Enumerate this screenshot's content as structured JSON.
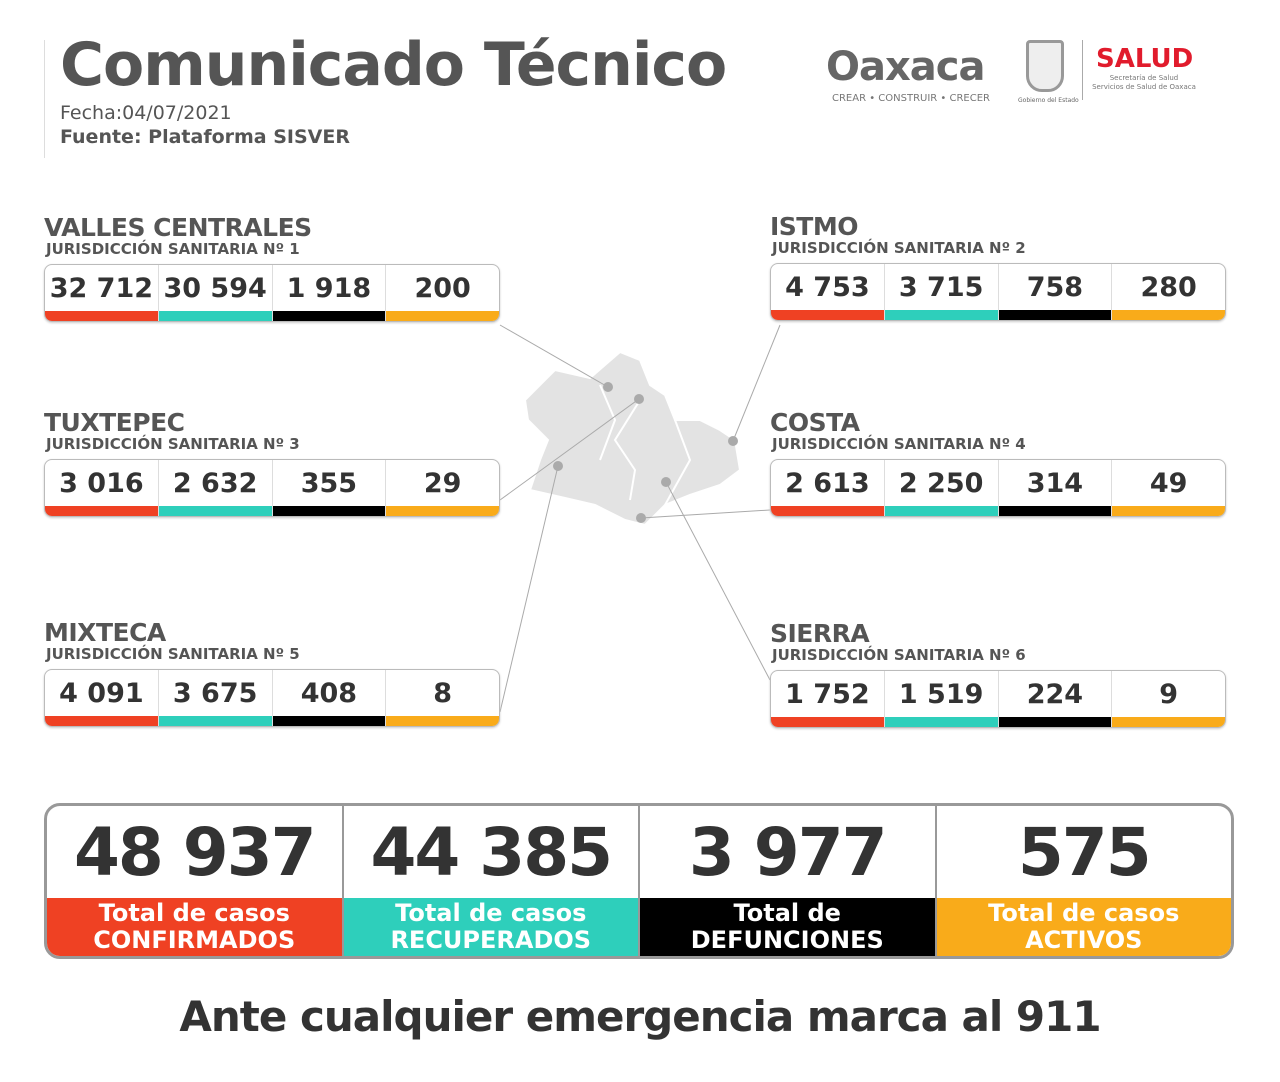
{
  "header": {
    "title": "Comunicado Técnico",
    "fecha": "Fecha:04/07/2021",
    "fuente": "Fuente: Plataforma SISVER"
  },
  "logos": {
    "oaxaca": "Oaxaca",
    "oaxaca_slogan": "CREAR • CONSTRUIR • CRECER",
    "gobierno": "Gobierno del Estado",
    "salud": "SALUD",
    "salud_sub1": "Secretaría de Salud",
    "salud_sub2": "Servicios de Salud de Oaxaca"
  },
  "colors": {
    "confirmados": "#ef4123",
    "recuperados": "#2ecfbb",
    "defunciones": "#000000",
    "activos": "#f9ab1a"
  },
  "regions": [
    {
      "name": "VALLES CENTRALES",
      "jurisdiccion": "JURISDICCIÓN SANITARIA Nº 1",
      "values": [
        "32 712",
        "30 594",
        "1 918",
        "200"
      ]
    },
    {
      "name": "ISTMO",
      "jurisdiccion": "JURISDICCIÓN SANITARIA Nº 2",
      "values": [
        "4 753",
        "3 715",
        "758",
        "280"
      ]
    },
    {
      "name": "TUXTEPEC",
      "jurisdiccion": "JURISDICCIÓN SANITARIA Nº 3",
      "values": [
        "3 016",
        "2 632",
        "355",
        "29"
      ]
    },
    {
      "name": "COSTA",
      "jurisdiccion": "JURISDICCIÓN SANITARIA Nº 4",
      "values": [
        "2 613",
        "2 250",
        "314",
        "49"
      ]
    },
    {
      "name": "MIXTECA",
      "jurisdiccion": "JURISDICCIÓN SANITARIA Nº 5",
      "values": [
        "4 091",
        "3 675",
        "408",
        "8"
      ]
    },
    {
      "name": "SIERRA",
      "jurisdiccion": "JURISDICCIÓN SANITARIA Nº 6",
      "values": [
        "1 752",
        "1 519",
        "224",
        "9"
      ]
    }
  ],
  "totals": [
    {
      "value": "48 937",
      "line1": "Total de casos",
      "line2": "CONFIRMADOS"
    },
    {
      "value": "44 385",
      "line1": "Total de casos",
      "line2": "RECUPERADOS"
    },
    {
      "value": "3 977",
      "line1": "Total de",
      "line2": "DEFUNCIONES"
    },
    {
      "value": "575",
      "line1": "Total de casos",
      "line2": "ACTIVOS"
    }
  ],
  "footer": "Ante cualquier emergencia marca al 911"
}
